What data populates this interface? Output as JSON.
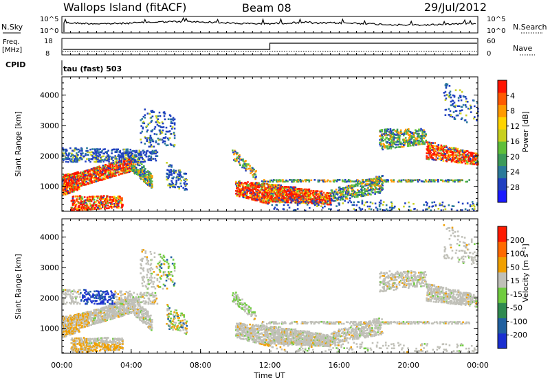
{
  "header": {
    "station": "Wallops Island (fitACF)",
    "beam": "Beam 08",
    "date": "29/Jul/2012"
  },
  "panels": {
    "nsky": {
      "left_label": "N.Sky",
      "right_label": "N.Search",
      "left_ticks": [
        "10^5",
        "10^0"
      ],
      "right_ticks": [
        "10^5",
        "10^0"
      ]
    },
    "freq": {
      "left_label_1": "Freq.",
      "left_label_2": "[MHz]",
      "right_label": "Nave",
      "left_ticks": [
        "18",
        "8"
      ],
      "right_ticks": [
        "60",
        "0"
      ],
      "freq_step_time_hours": 12
    },
    "cpid": {
      "label": "CPID",
      "text": "tau (fast) 503"
    }
  },
  "chart_data": [
    {
      "type": "heatmap",
      "name": "power",
      "ylabel": "Slant Range [km]",
      "ylim": [
        180,
        4600
      ],
      "y_ticks": [
        1000,
        2000,
        3000,
        4000
      ],
      "xlim": [
        0,
        24
      ],
      "colorbar": {
        "label": "Power [dB]",
        "ticks": [
          "4",
          "8",
          "12",
          "16",
          "20",
          "24",
          "28"
        ],
        "colors": [
          "#1a1aff",
          "#2040c0",
          "#2a7a9a",
          "#3c9a5a",
          "#5fbf3a",
          "#c8d020",
          "#ffd400",
          "#ff9a00",
          "#ff5a00",
          "#ff1400"
        ]
      }
    },
    {
      "type": "heatmap",
      "name": "velocity",
      "ylabel": "Slant Range [km]",
      "ylim": [
        180,
        4600
      ],
      "y_ticks": [
        1000,
        2000,
        3000,
        4000
      ],
      "xlim": [
        0,
        24
      ],
      "xlabel": "Time UT",
      "x_ticks": [
        "00:00",
        "04:00",
        "08:00",
        "12:00",
        "16:00",
        "20:00",
        "00:00"
      ],
      "colorbar": {
        "label": "Velocity [m s⁻¹]",
        "ticks": [
          "200",
          "100",
          "50",
          "15",
          "-15",
          "-50",
          "-100",
          "-200"
        ],
        "colors": [
          "#1a2fd0",
          "#2060a0",
          "#2f8a50",
          "#70cc40",
          "#c0c0b8",
          "#f0a000",
          "#ff6a00",
          "#ff1a00"
        ]
      }
    }
  ]
}
